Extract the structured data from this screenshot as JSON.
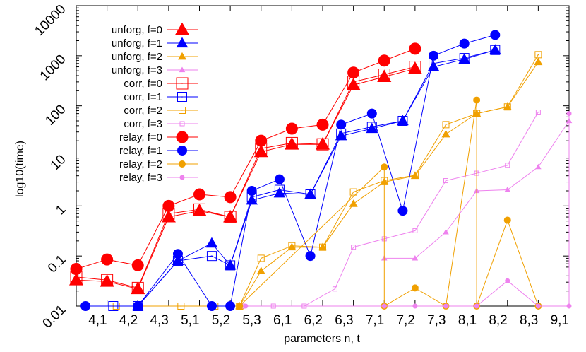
{
  "chart_data": {
    "type": "line",
    "title": "",
    "xlabel": "parameters n, t",
    "ylabel": "log10(time)",
    "y_scale": "log",
    "ylim": [
      0.01,
      10000
    ],
    "xlim": [
      0,
      16
    ],
    "grid": false,
    "legend_position": "top-left",
    "categories": [
      "4,1",
      "4,2",
      "4,3",
      "5,1",
      "5,2",
      "5,3",
      "6,1",
      "6,2",
      "6,3",
      "7,1",
      "7,2",
      "7,3",
      "8,1",
      "8,2",
      "8,3",
      "9,1"
    ],
    "y_tick_labels": [
      "0.01",
      "0.1",
      "1",
      "10",
      "100",
      "1000",
      "10000"
    ],
    "y_tick_values": [
      0.01,
      0.1,
      1,
      10,
      100,
      1000,
      10000
    ],
    "series": [
      {
        "name": "unforg, f=0",
        "color": "#ff0000",
        "marker": "triangle",
        "size": "large",
        "points": [
          [
            0,
            0.033
          ],
          [
            1,
            0.031
          ],
          [
            2,
            0.022
          ],
          [
            3,
            0.6
          ],
          [
            4,
            0.8
          ],
          [
            5,
            0.6
          ],
          [
            6,
            12
          ],
          [
            7,
            17
          ],
          [
            8,
            17
          ],
          [
            9,
            260
          ],
          [
            10,
            380
          ],
          [
            11,
            550
          ]
        ]
      },
      {
        "name": "unforg, f=1",
        "color": "#0000ff",
        "marker": "triangle",
        "size": "medium",
        "points": [
          [
            2,
            0.01
          ],
          [
            3.3,
            0.08
          ],
          [
            4.4,
            0.18
          ],
          [
            5,
            0.065
          ],
          [
            5.7,
            1.3
          ],
          [
            6.6,
            1.8
          ],
          [
            7.6,
            1.7
          ],
          [
            8.6,
            25
          ],
          [
            9.6,
            35
          ],
          [
            10.6,
            50
          ],
          [
            11.6,
            600
          ],
          [
            12.6,
            850
          ],
          [
            13.6,
            1300
          ]
        ]
      },
      {
        "name": "unforg, f=2",
        "color": "#f0a000",
        "marker": "triangle",
        "size": "small",
        "points": [
          [
            5.3,
            0.01
          ],
          [
            6,
            0.05
          ],
          [
            7,
            0.15
          ],
          [
            8,
            0.15
          ],
          [
            9,
            1.1
          ],
          [
            10,
            3
          ],
          [
            11,
            4
          ],
          [
            12,
            27
          ],
          [
            13,
            70
          ],
          [
            14,
            95
          ],
          [
            15,
            750
          ]
        ]
      },
      {
        "name": "unforg, f=3",
        "color": "#ee82ee",
        "marker": "triangle",
        "size": "tiny",
        "points": [
          [
            10,
            0.09
          ],
          [
            11,
            0.09
          ],
          [
            12,
            0.3
          ],
          [
            13,
            2
          ],
          [
            14,
            2.1
          ],
          [
            15,
            6
          ],
          [
            16,
            50
          ]
        ]
      },
      {
        "name": "corr, f=0",
        "color": "#ff0000",
        "marker": "square",
        "size": "large",
        "points": [
          [
            0,
            0.038
          ],
          [
            1,
            0.033
          ],
          [
            2,
            0.023
          ],
          [
            3,
            0.7
          ],
          [
            4,
            0.85
          ],
          [
            5,
            0.6
          ],
          [
            6,
            14
          ],
          [
            7,
            18
          ],
          [
            8,
            17
          ],
          [
            9,
            300
          ],
          [
            10,
            420
          ],
          [
            11,
            600
          ]
        ]
      },
      {
        "name": "corr, f=1",
        "color": "#0000ff",
        "marker": "square",
        "size": "medium",
        "points": [
          [
            1.2,
            0.01
          ],
          [
            2,
            0.01
          ],
          [
            3.3,
            0.08
          ],
          [
            4.4,
            0.1
          ],
          [
            5,
            0.065
          ],
          [
            5.7,
            1.5
          ],
          [
            6.6,
            2.1
          ],
          [
            7.6,
            1.7
          ],
          [
            8.6,
            28
          ],
          [
            9.6,
            38
          ],
          [
            10.6,
            50
          ],
          [
            11.6,
            700
          ],
          [
            12.6,
            900
          ],
          [
            13.6,
            1300
          ]
        ]
      },
      {
        "name": "corr, f=2",
        "color": "#f0a000",
        "marker": "square",
        "size": "small",
        "points": [
          [
            1.3,
            0.01
          ],
          [
            3.4,
            0.01
          ],
          [
            4.5,
            0.01
          ],
          [
            5.3,
            0.01
          ],
          [
            6,
            0.09
          ],
          [
            7,
            0.16
          ],
          [
            8,
            0.15
          ],
          [
            9,
            1.9
          ],
          [
            10,
            3.2
          ],
          [
            11,
            4.1
          ],
          [
            12,
            42
          ],
          [
            13,
            70
          ],
          [
            14,
            95
          ],
          [
            15,
            1050
          ]
        ]
      },
      {
        "name": "corr, f=3",
        "color": "#ee82ee",
        "marker": "square",
        "size": "tiny",
        "points": [
          [
            5.4,
            0.01
          ],
          [
            6.4,
            0.01
          ],
          [
            7.4,
            0.01
          ],
          [
            8.4,
            0.022
          ],
          [
            9,
            0.15
          ],
          [
            10,
            0.22
          ],
          [
            11,
            0.32
          ],
          [
            12,
            3.2
          ],
          [
            13,
            4.5
          ],
          [
            14,
            6.5
          ],
          [
            15,
            75
          ]
        ]
      },
      {
        "name": "relay, f=0",
        "color": "#ff0000",
        "marker": "circle",
        "size": "large",
        "points": [
          [
            0,
            0.055
          ],
          [
            1,
            0.085
          ],
          [
            2,
            0.065
          ],
          [
            3,
            1
          ],
          [
            4,
            1.7
          ],
          [
            5,
            1.5
          ],
          [
            6,
            20
          ],
          [
            7,
            35
          ],
          [
            8,
            42
          ],
          [
            9,
            460
          ],
          [
            10,
            800
          ],
          [
            11,
            1380
          ]
        ]
      },
      {
        "name": "relay, f=1",
        "color": "#0000ff",
        "marker": "circle",
        "size": "medium",
        "points": [
          [
            0.3,
            0.01
          ],
          [
            2,
            0.01
          ],
          [
            3.3,
            0.11
          ],
          [
            4.4,
            0.01
          ],
          [
            5,
            0.01
          ],
          [
            5.7,
            2
          ],
          [
            6.6,
            3.4
          ],
          [
            7.6,
            0.1
          ],
          [
            8.6,
            42
          ],
          [
            9.6,
            70
          ],
          [
            10.6,
            0.8
          ],
          [
            11.6,
            1000
          ],
          [
            12.6,
            1750
          ],
          [
            13.6,
            2600
          ]
        ]
      },
      {
        "name": "relay, f=2",
        "color": "#f0a000",
        "marker": "circle",
        "size": "small",
        "points": [
          [
            5.3,
            0.01
          ],
          [
            10,
            6
          ],
          [
            10,
            0.01
          ],
          [
            11,
            0.023
          ],
          [
            12,
            0.01
          ],
          [
            13,
            130
          ],
          [
            13,
            0.01
          ],
          [
            14,
            0.52
          ],
          [
            15,
            0.01
          ]
        ]
      },
      {
        "name": "relay, f=3",
        "color": "#ee82ee",
        "marker": "circle",
        "size": "tiny",
        "points": [
          [
            5.5,
            0.01
          ],
          [
            10,
            0.01
          ],
          [
            11,
            0.01
          ],
          [
            12,
            0.01
          ],
          [
            13,
            0.01
          ],
          [
            14,
            0.032
          ],
          [
            15,
            0.01
          ],
          [
            16,
            0.01
          ],
          [
            16,
            70
          ]
        ]
      }
    ]
  }
}
